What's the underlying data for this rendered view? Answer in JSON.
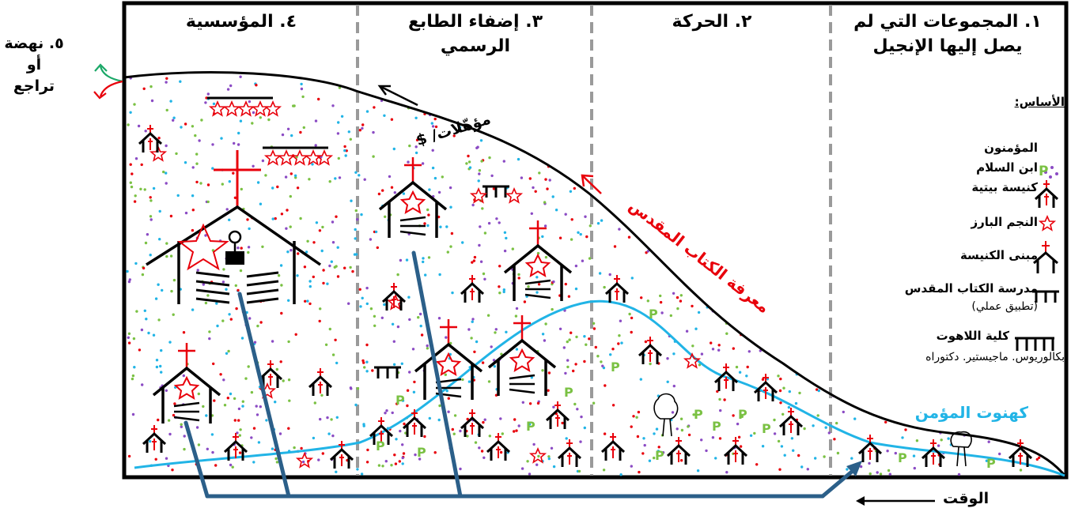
{
  "stages": [
    {
      "label_line1": "١. المجموعات التي لم",
      "label_line2": "يصل إليها الإنجيل"
    },
    {
      "label_line1": "٢. الحركة",
      "label_line2": ""
    },
    {
      "label_line1": "٣. إضفاء الطابع",
      "label_line2": "الرسمي"
    },
    {
      "label_line1": "٤. المؤسسية",
      "label_line2": ""
    }
  ],
  "renewal": {
    "line1": "٥. نهضة",
    "line2": "أو",
    "line3": "تراجع"
  },
  "legend": {
    "title": "الأساس:",
    "items": [
      {
        "icon": "dots-icon",
        "label": "المؤمنون",
        "sub": ""
      },
      {
        "icon": "p-icon",
        "label": "ابن السلام",
        "sub": ""
      },
      {
        "icon": "house-church-icon",
        "label": "كنيسة بيتية",
        "sub": ""
      },
      {
        "icon": "star-icon",
        "label": "النجم البارز",
        "sub": ""
      },
      {
        "icon": "church-building-icon",
        "label": "مبنى الكنيسة",
        "sub": ""
      },
      {
        "icon": "bible-school-icon",
        "label": "مدرسة الكتاب المقدس",
        "sub": "(تطبيق عملي)"
      },
      {
        "icon": "seminary-icon",
        "label": "كلية اللاهوت",
        "sub": "بكالوريوس. ماجيستير. دكتوراه"
      }
    ]
  },
  "annotations": {
    "credentials": "مؤهّلات/ $",
    "bible_knowledge": "معرفة الكتاب المقدس",
    "priesthood": "كهنوت المؤمن",
    "time": "الوقت"
  },
  "colors": {
    "bible_knowledge": "#e8000b",
    "priesthood": "#21b4e6",
    "arrows": "#2b5f89",
    "divider": "#9a9a9a",
    "p_green": "#7ac143",
    "renewal_up": "#1aa867",
    "renewal_down": "#e8000b"
  }
}
